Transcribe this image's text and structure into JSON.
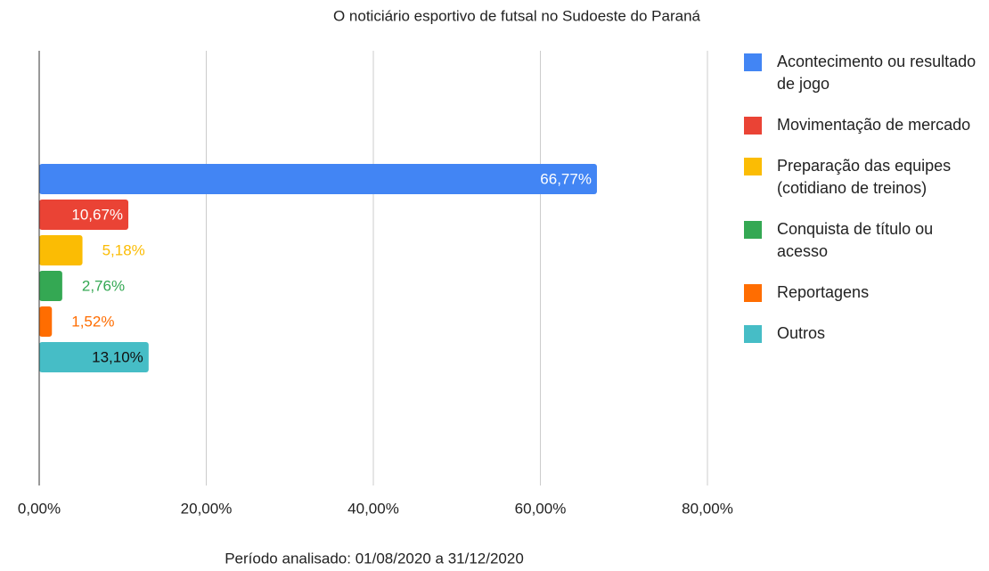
{
  "chart_data": {
    "type": "bar",
    "orientation": "horizontal",
    "title": "O noticiário esportivo de futsal no Sudoeste do Paraná",
    "xlabel": "Período analisado: 01/08/2020 a 31/12/2020",
    "categories": [
      null
    ],
    "series": [
      {
        "name": "Acontecimento ou resultado de jogo",
        "color": "#4285f4",
        "values": [
          66.77
        ],
        "value_labels": [
          "66,77%"
        ]
      },
      {
        "name": "Movimentação de mercado",
        "color": "#ea4335",
        "values": [
          10.67
        ],
        "value_labels": [
          "10,67%"
        ]
      },
      {
        "name": "Preparação das equipes (cotidiano de treinos)",
        "color": "#fbbc04",
        "values": [
          5.18
        ],
        "value_labels": [
          "5,18%"
        ]
      },
      {
        "name": "Conquista de título ou acesso",
        "color": "#34a853",
        "values": [
          2.76
        ],
        "value_labels": [
          "2,76%"
        ]
      },
      {
        "name": "Reportagens",
        "color": "#ff6d01",
        "values": [
          1.52
        ],
        "value_labels": [
          "1,52%"
        ]
      },
      {
        "name": "Outros",
        "color": "#46bdc6",
        "values": [
          13.1
        ],
        "value_labels": [
          "13,10%"
        ]
      }
    ],
    "xlim": [
      0,
      80
    ],
    "xticks": [
      {
        "value": 0,
        "label": "0,00%"
      },
      {
        "value": 20,
        "label": "20,00%"
      },
      {
        "value": 40,
        "label": "40,00%"
      },
      {
        "value": 60,
        "label": "60,00%"
      },
      {
        "value": 80,
        "label": "80,00%"
      }
    ],
    "grid": true,
    "legend": "right"
  }
}
